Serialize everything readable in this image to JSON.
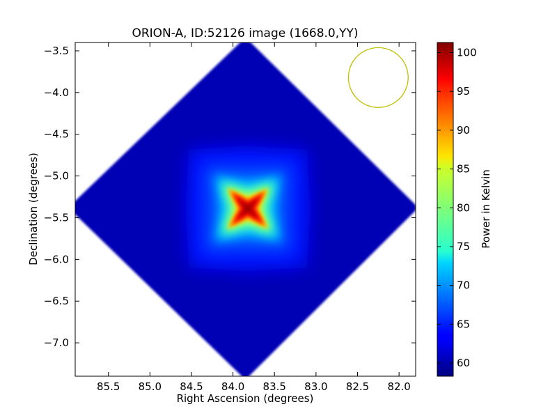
{
  "chart_data": {
    "type": "heatmap",
    "title": "ORION-A, ID:52126 image (1668.0,YY)",
    "xlabel": "Right Ascension (degrees)",
    "ylabel": "Declination (degrees)",
    "colorbar_label": "Power in Kelvin",
    "colormap": "jet",
    "xlim": [
      85.9,
      81.8
    ],
    "ylim": [
      -7.4,
      -3.4
    ],
    "x_ticks": [
      85.5,
      85.0,
      84.5,
      84.0,
      83.5,
      83.0,
      82.5,
      82.0
    ],
    "x_tick_labels": [
      "85.5",
      "85.0",
      "84.5",
      "84.0",
      "83.5",
      "83.0",
      "82.5",
      "82.0"
    ],
    "y_ticks": [
      -3.5,
      -4.0,
      -4.5,
      -5.0,
      -5.5,
      -6.0,
      -6.5,
      -7.0
    ],
    "y_tick_labels": [
      "−3.5",
      "−4.0",
      "−4.5",
      "−5.0",
      "−5.5",
      "−6.0",
      "−6.5",
      "−7.0"
    ],
    "colorbar_range": [
      58.3,
      101.3
    ],
    "colorbar_ticks": [
      60,
      65,
      70,
      75,
      80,
      85,
      90,
      95,
      100
    ],
    "colorbar_tick_labels": [
      "60",
      "65",
      "70",
      "75",
      "80",
      "85",
      "90",
      "95",
      "100"
    ],
    "map_footprint": {
      "shape": "diamond",
      "center_ra": 83.85,
      "center_dec": -5.38,
      "corners": [
        {
          "ra": 85.9,
          "dec": -5.38
        },
        {
          "ra": 83.85,
          "dec": -3.42
        },
        {
          "ra": 81.85,
          "dec": -5.38
        },
        {
          "ra": 83.85,
          "dec": -7.36
        }
      ],
      "background_level": 60.5
    },
    "source": {
      "ra": 83.82,
      "dec": -5.39,
      "peak_kelvin": 101
    },
    "beam": {
      "ra": 82.25,
      "dec": -3.82,
      "radius_deg": 0.36,
      "color": "#bfbf00"
    }
  }
}
